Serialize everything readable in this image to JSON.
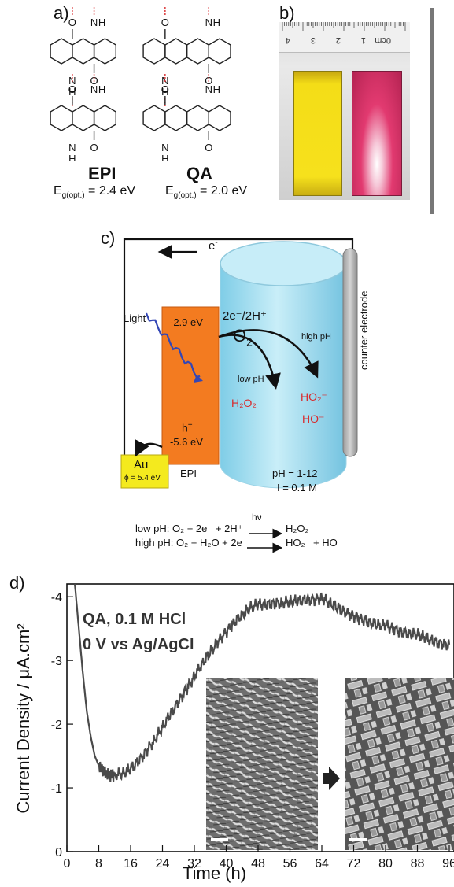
{
  "panel_a": {
    "label": "a)",
    "molecule_1": "EPI",
    "molecule_2": "QA",
    "eg1_main": "E",
    "eg1_sub": "g(opt.)",
    "eg1_value": " = 2.4 eV",
    "eg2_main": "E",
    "eg2_sub": "g(opt.)",
    "eg2_value": " = 2.0 eV",
    "atom_O": "O",
    "atom_N": "N",
    "atom_H": "H"
  },
  "panel_b": {
    "label": "b)",
    "ruler_ticks": [
      "4",
      "3",
      "2",
      "1",
      "0cm"
    ],
    "colors": {
      "yellow_slide": "#f4dd17",
      "red_slide": "#e23a70"
    }
  },
  "panel_c": {
    "label": "c)",
    "electron": "e",
    "electron_sup": "-",
    "light": "Light",
    "cb_energy": "-2.9 eV",
    "vb_energy": "-5.6 eV",
    "hole": "h",
    "hole_sup": "+",
    "au": "Au",
    "phi": "ϕ = 5.4 eV",
    "epi": "EPI",
    "transfer": "2e⁻/2H⁺",
    "o2": "O",
    "o2_sub": "2",
    "high_ph": "high pH",
    "low_ph": "low pH",
    "h2o2": "H₂O₂",
    "ho2": "HO₂⁻",
    "ho": "HO⁻",
    "counter": "counter electrode",
    "ph_range": "pH = 1-12",
    "ionic": "I = 0.1 M",
    "hv": "hν",
    "eq1_lhs": "low pH:  O₂ + 2e⁻ + 2H⁺",
    "eq1_rhs": "H₂O₂",
    "eq2_lhs": "high pH: O₂ + H₂O + 2e⁻",
    "eq2_rhs": "HO₂⁻ + HO⁻",
    "colors": {
      "orange": "#f37b20",
      "au_yellow": "#f4ea1e",
      "cyl_blue": "#9fdcf0",
      "red_text": "#d8292b",
      "wave": "#3346b5"
    }
  },
  "panel_d": {
    "label": "d)",
    "annotation_1": "QA, 0.1 M HCl",
    "annotation_2": "0 V vs Ag/AgCl"
  },
  "chart_data": {
    "type": "line",
    "title": "",
    "xlabel": "Time (h)",
    "ylabel": "Current Density / μA.cm²",
    "xlim": [
      0,
      96
    ],
    "ylim": [
      0,
      -4.2
    ],
    "x_ticks": [
      "0",
      "8",
      "16",
      "24",
      "32",
      "40",
      "48",
      "56",
      "64",
      "72",
      "80",
      "88",
      "96"
    ],
    "y_ticks": [
      "0",
      "-1",
      "-2",
      "-3",
      "-4"
    ],
    "series": [
      {
        "x": [
          2,
          3,
          4,
          5,
          6,
          7,
          8,
          9,
          10,
          11,
          12,
          14,
          16,
          18,
          20,
          22,
          24,
          26,
          28,
          30,
          32,
          34,
          36,
          38,
          40,
          42,
          44,
          46,
          48,
          50,
          52,
          54,
          56,
          58,
          60,
          62,
          64,
          66,
          68,
          70,
          72,
          74,
          76,
          78,
          80,
          82,
          84,
          86,
          88,
          90,
          92,
          94,
          96
        ],
        "y": [
          -4.2,
          -3.5,
          -2.8,
          -2.2,
          -1.8,
          -1.5,
          -1.35,
          -1.27,
          -1.22,
          -1.2,
          -1.2,
          -1.22,
          -1.3,
          -1.42,
          -1.58,
          -1.75,
          -1.95,
          -2.15,
          -2.35,
          -2.55,
          -2.75,
          -2.95,
          -3.12,
          -3.3,
          -3.45,
          -3.6,
          -3.72,
          -3.82,
          -3.88,
          -3.88,
          -3.9,
          -3.9,
          -3.92,
          -3.93,
          -3.95,
          -3.96,
          -3.98,
          -3.9,
          -3.82,
          -3.75,
          -3.7,
          -3.65,
          -3.6,
          -3.55,
          -3.55,
          -3.5,
          -3.45,
          -3.42,
          -3.4,
          -3.35,
          -3.3,
          -3.27,
          -3.25
        ]
      }
    ]
  }
}
